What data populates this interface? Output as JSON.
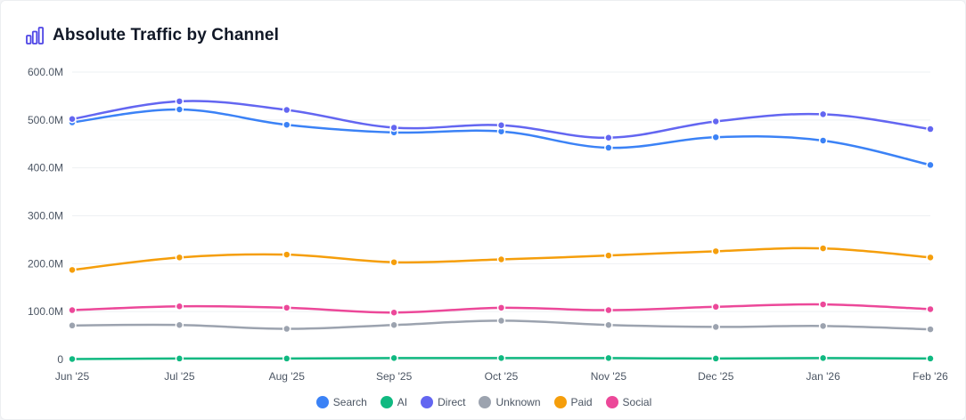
{
  "header": {
    "title": "Absolute Traffic by Channel",
    "icon": "bar-chart-icon"
  },
  "chart_data": {
    "type": "line",
    "title": "Absolute Traffic by Channel",
    "x": [
      "Jun '25",
      "Jul '25",
      "Aug '25",
      "Sep '25",
      "Oct '25",
      "Nov '25",
      "Dec '25",
      "Jan '26",
      "Feb '26"
    ],
    "yticks": [
      {
        "value": 0,
        "label": "0"
      },
      {
        "value": 100,
        "label": "100.0M"
      },
      {
        "value": 200,
        "label": "200.0M"
      },
      {
        "value": 300,
        "label": "300.0M"
      },
      {
        "value": 400,
        "label": "400.0M"
      },
      {
        "value": 500,
        "label": "500.0M"
      },
      {
        "value": 600,
        "label": "600.0M"
      }
    ],
    "yunit": "M",
    "ylim": [
      0,
      600
    ],
    "grid": true,
    "legend_position": "bottom",
    "series": [
      {
        "name": "Search",
        "color": "#3b82f6",
        "values": [
          495,
          522,
          490,
          474,
          476,
          442,
          464,
          457,
          406
        ]
      },
      {
        "name": "AI",
        "color": "#10b981",
        "values": [
          1,
          2,
          2,
          3,
          3,
          3,
          2,
          3,
          2
        ]
      },
      {
        "name": "Direct",
        "color": "#6366f1",
        "values": [
          502,
          539,
          521,
          484,
          489,
          463,
          497,
          512,
          481
        ]
      },
      {
        "name": "Unknown",
        "color": "#9ca3af",
        "values": [
          71,
          72,
          64,
          72,
          81,
          72,
          68,
          70,
          63
        ]
      },
      {
        "name": "Paid",
        "color": "#f59e0b",
        "values": [
          187,
          213,
          219,
          203,
          209,
          217,
          226,
          232,
          213
        ]
      },
      {
        "name": "Social",
        "color": "#ec4899",
        "values": [
          103,
          111,
          108,
          98,
          108,
          103,
          110,
          115,
          105
        ]
      }
    ]
  }
}
